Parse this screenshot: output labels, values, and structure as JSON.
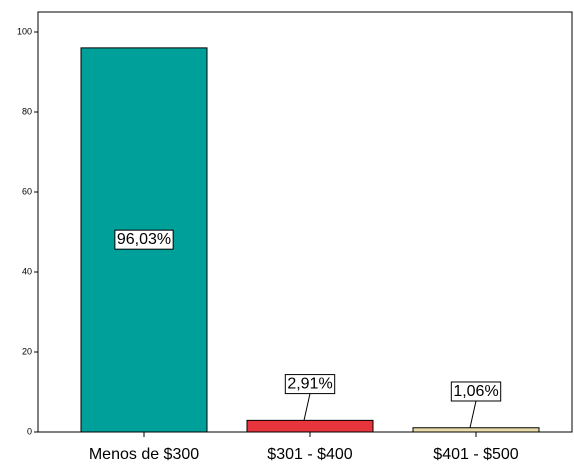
{
  "chart_data": {
    "type": "bar",
    "categories": [
      "Menos de $300",
      "$301 - $400",
      "$401 - $500"
    ],
    "values": [
      96.03,
      2.91,
      1.06
    ],
    "value_labels": [
      "96,03%",
      "2,91%",
      "1,06%"
    ],
    "colors": [
      "#00a09a",
      "#e8343c",
      "#e8dcaa"
    ],
    "ylim": [
      0,
      105
    ],
    "yticks": [
      0,
      20,
      40,
      60,
      80,
      100
    ],
    "grid": false
  }
}
